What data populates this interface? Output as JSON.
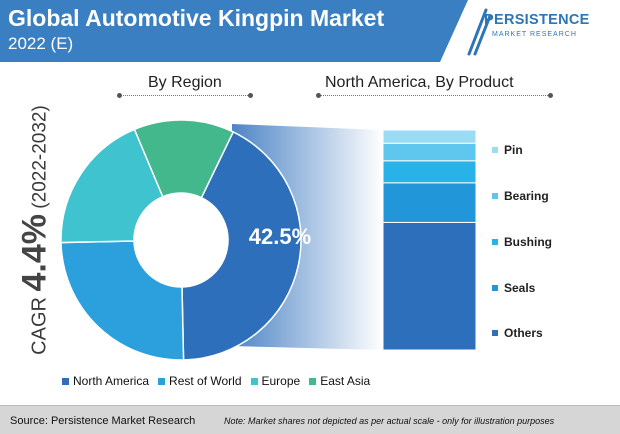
{
  "header": {
    "title": "Global Automotive Kingpin Market",
    "subtitle": "2022 (E)"
  },
  "logo": {
    "name": "PERSISTENCE",
    "tagline": "MARKET RESEARCH"
  },
  "sections": {
    "region": "By Region",
    "product": "North America, By Product"
  },
  "cagr": {
    "prefix": "CAGR ",
    "value": "4.4%",
    "period": " (2022-2032)"
  },
  "footer": {
    "source": "Source: Persistence Market Research",
    "note": "Note: Market shares not depicted as per actual scale - only for illustration purposes"
  },
  "colors": {
    "header": "#3a7fc2",
    "brand": "#2e75b6"
  },
  "chart_data": [
    {
      "type": "pie",
      "subtype": "donut",
      "categories": [
        "North America",
        "Rest of World",
        "Europe",
        "East Asia"
      ],
      "values": [
        42.5,
        25,
        19,
        13.5
      ],
      "colors": [
        "#2e6fbb",
        "#2ba0dc",
        "#3ec3cf",
        "#43b88c"
      ],
      "data_labels": [
        "42.5%"
      ],
      "legend_position": "bottom"
    },
    {
      "type": "bar",
      "subtype": "stacked-column",
      "categories": [
        "Others",
        "Seals",
        "Bushing",
        "Bearing",
        "Pin"
      ],
      "values": [
        58,
        18,
        10,
        8,
        6
      ],
      "colors": [
        "#2e6fbb",
        "#2196d8",
        "#29b2e8",
        "#5fc6ee",
        "#9bdcf5"
      ],
      "legend_position": "right"
    }
  ]
}
